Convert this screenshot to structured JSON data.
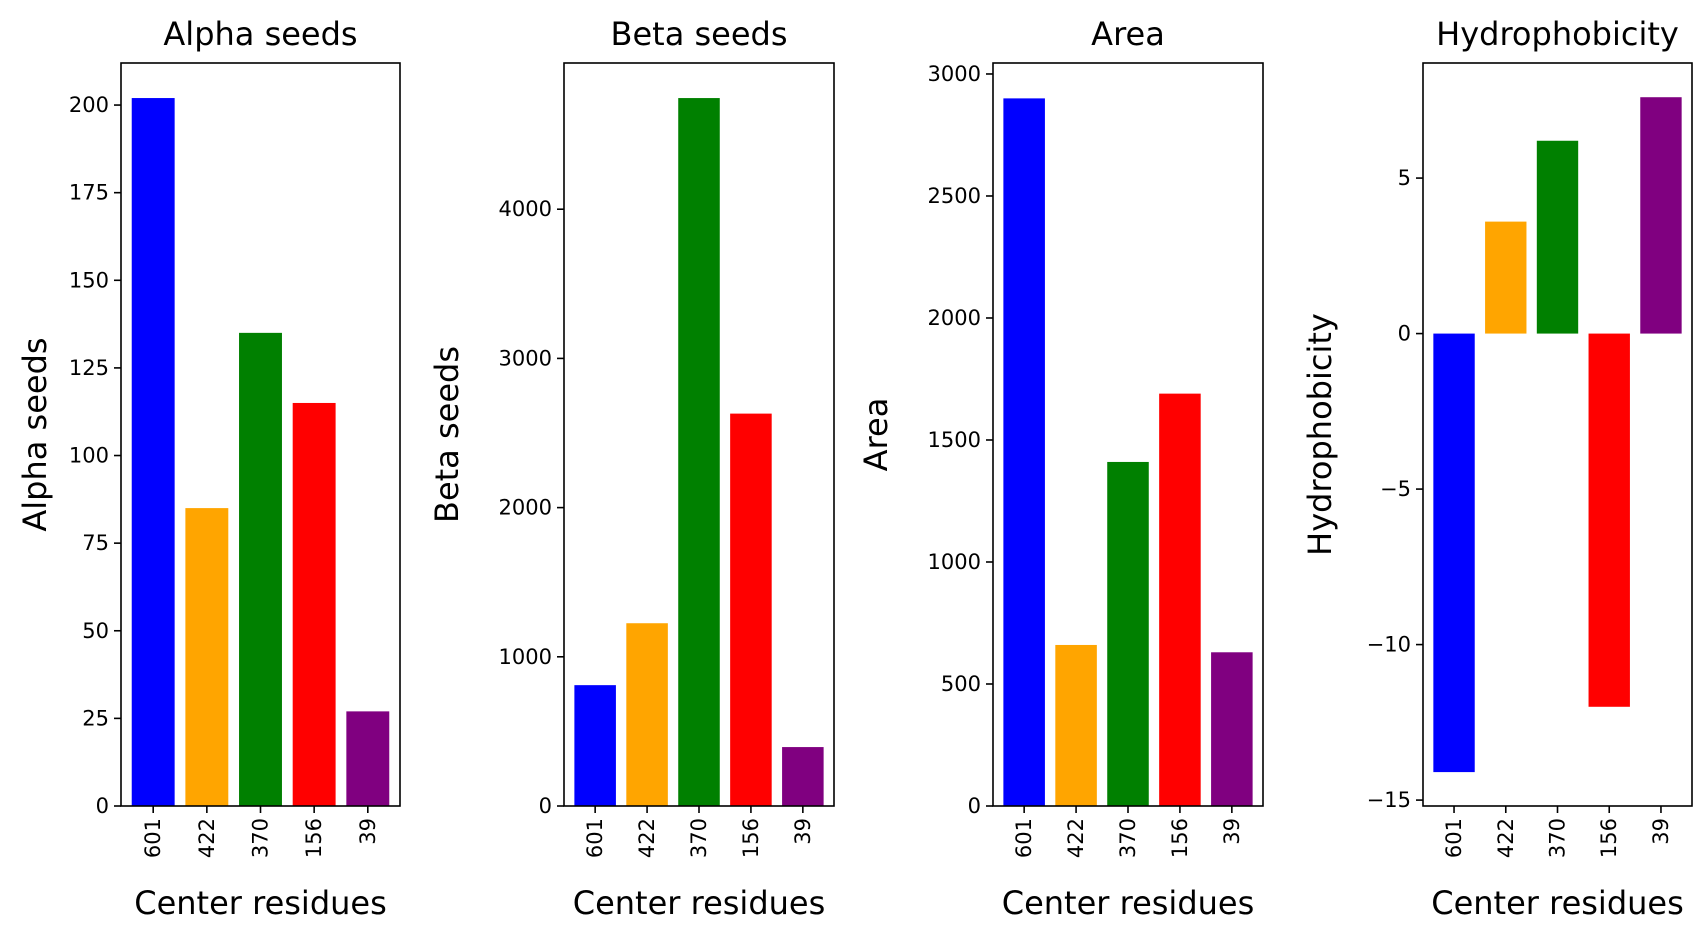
{
  "chart_data": [
    {
      "type": "bar",
      "title": "Alpha seeds",
      "xlabel": "Center residues",
      "ylabel": "Alpha seeds",
      "categories": [
        "601",
        "422",
        "370",
        "156",
        "39"
      ],
      "values": [
        202,
        85,
        135,
        115,
        27
      ],
      "colors": [
        "#0000ff",
        "#ffa500",
        "#008000",
        "#ff0000",
        "#800080"
      ],
      "ylim": [
        0,
        212
      ],
      "yticks": [
        0,
        25,
        50,
        75,
        100,
        125,
        150,
        175,
        200
      ],
      "ytick_labels": [
        "0",
        "25",
        "50",
        "75",
        "100",
        "125",
        "150",
        "175",
        "200"
      ],
      "grid": false
    },
    {
      "type": "bar",
      "title": "Beta seeds",
      "xlabel": "Center residues",
      "ylabel": "Beta seeds",
      "categories": [
        "601",
        "422",
        "370",
        "156",
        "39"
      ],
      "values": [
        810,
        1225,
        4745,
        2630,
        395
      ],
      "colors": [
        "#0000ff",
        "#ffa500",
        "#008000",
        "#ff0000",
        "#800080"
      ],
      "ylim": [
        0,
        4980
      ],
      "yticks": [
        0,
        1000,
        2000,
        3000,
        4000
      ],
      "ytick_labels": [
        "0",
        "1000",
        "2000",
        "3000",
        "4000"
      ],
      "grid": false
    },
    {
      "type": "bar",
      "title": "Area",
      "xlabel": "Center residues",
      "ylabel": "Area",
      "categories": [
        "601",
        "422",
        "370",
        "156",
        "39"
      ],
      "values": [
        2900,
        660,
        1410,
        1690,
        630
      ],
      "colors": [
        "#0000ff",
        "#ffa500",
        "#008000",
        "#ff0000",
        "#800080"
      ],
      "ylim": [
        0,
        3045
      ],
      "yticks": [
        0,
        500,
        1000,
        1500,
        2000,
        2500,
        3000
      ],
      "ytick_labels": [
        "0",
        "500",
        "1000",
        "1500",
        "2000",
        "2500",
        "3000"
      ],
      "grid": false
    },
    {
      "type": "bar",
      "title": "Hydrophobicity",
      "xlabel": "Center residues",
      "ylabel": "Hydrophobicity",
      "categories": [
        "601",
        "422",
        "370",
        "156",
        "39"
      ],
      "values": [
        -14.1,
        3.6,
        6.2,
        -12.0,
        7.6
      ],
      "colors": [
        "#0000ff",
        "#ffa500",
        "#008000",
        "#ff0000",
        "#800080"
      ],
      "ylim": [
        -15.19,
        8.7
      ],
      "yticks": [
        -15,
        -10,
        -5,
        0,
        5
      ],
      "ytick_labels": [
        "−15",
        "−10",
        "−5",
        "0",
        "5"
      ],
      "grid": false
    }
  ]
}
